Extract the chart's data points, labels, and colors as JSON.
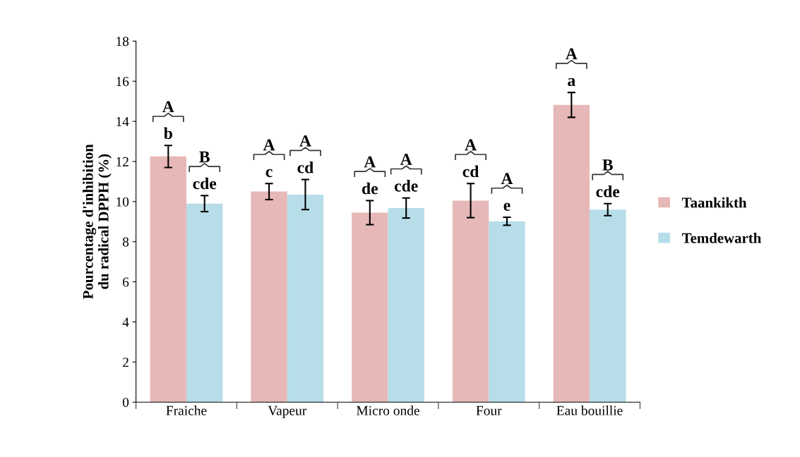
{
  "chart_data": {
    "type": "bar",
    "ylabel": "Pourcentage d'inhibition\ndu radical DPPH (%)",
    "categories": [
      "Fraiche",
      "Vapeur",
      "Micro onde",
      "Four",
      "Eau bouillie"
    ],
    "series": [
      {
        "name": "Taankikth",
        "color": "#e6b8b7",
        "values": [
          12.25,
          10.5,
          9.45,
          10.05,
          14.82
        ],
        "errors": [
          0.55,
          0.4,
          0.6,
          0.85,
          0.62
        ],
        "value_labels": [
          "A\nb",
          "A\nc",
          "A\nde",
          "A\ncd",
          "A\na"
        ]
      },
      {
        "name": "Temdewarth",
        "color": "#b7dee8",
        "values": [
          9.9,
          10.35,
          9.68,
          9.02,
          9.6
        ],
        "errors": [
          0.4,
          0.75,
          0.5,
          0.2,
          0.3
        ],
        "value_labels": [
          "B\ncde",
          "A\ncd",
          "A\ncde",
          "A\ne",
          "B\ncde"
        ]
      }
    ],
    "ylim": [
      0,
      18
    ],
    "yticks": [
      0,
      2,
      4,
      6,
      8,
      10,
      12,
      14,
      16,
      18
    ],
    "grid": false,
    "legend": "right"
  }
}
